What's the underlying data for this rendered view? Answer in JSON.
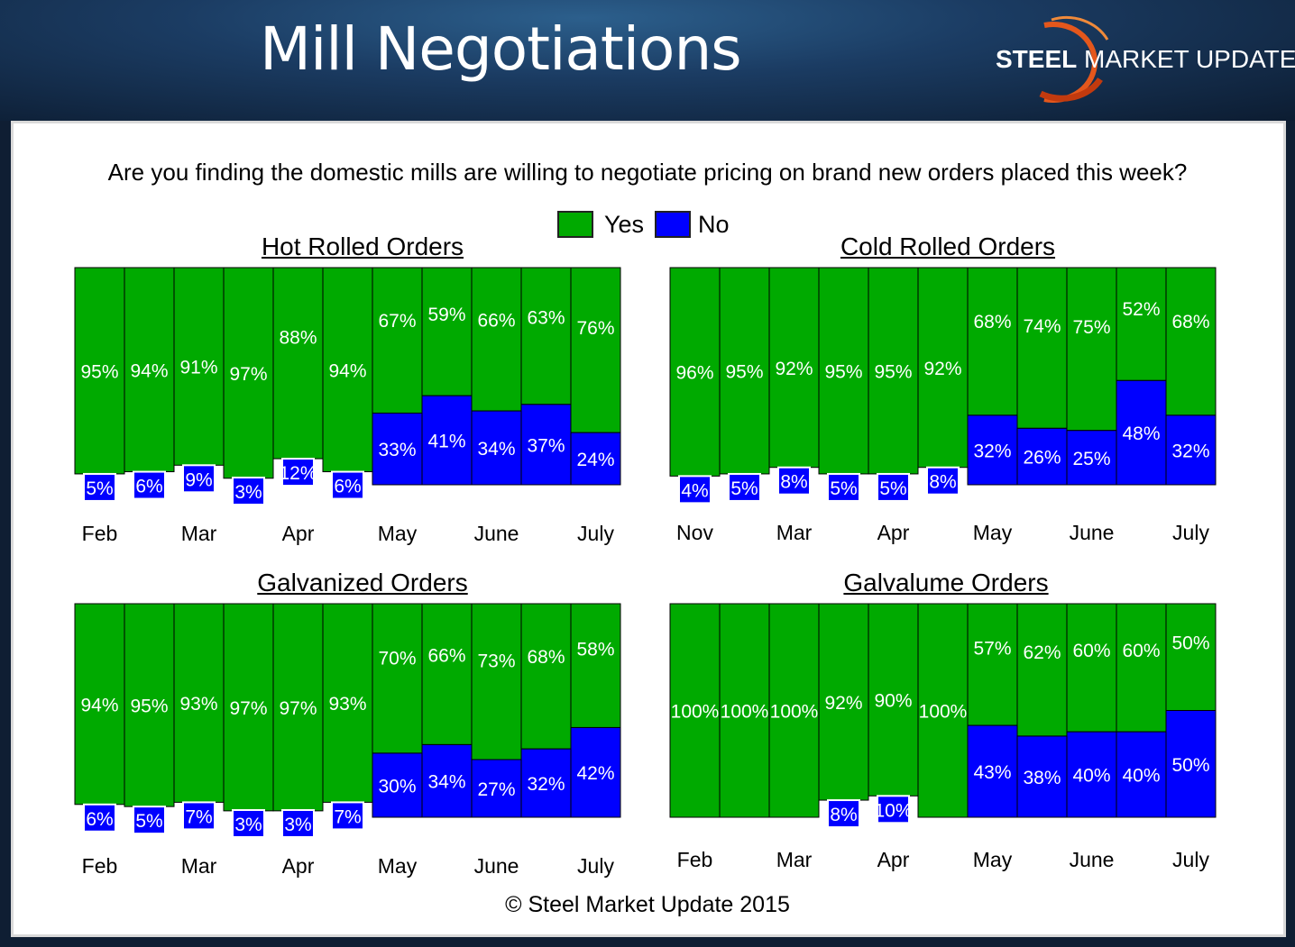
{
  "header": {
    "title": "Mill Negotiations"
  },
  "logo": {
    "bold": "STEEL",
    "rest": " MARKET UPDATE"
  },
  "question": "Are you finding the domestic mills are willing to negotiate pricing on brand new orders placed this week?",
  "legend": {
    "yes": "Yes",
    "no": "No"
  },
  "colors": {
    "yes": "#00aa00",
    "no": "#0000ff",
    "border": "#000000"
  },
  "footer": "© Steel Market Update 2015",
  "chart_data": [
    {
      "type": "bar",
      "stacked": true,
      "title": "Hot Rolled Orders",
      "x_labels": [
        "Feb",
        "Mar",
        "Apr",
        "May",
        "June",
        "July"
      ],
      "series": [
        {
          "name": "Yes",
          "labels": [
            "95%",
            "94%",
            "91%",
            "97%",
            "88%",
            "94%",
            "67%",
            "59%",
            "66%",
            "63%",
            "76%"
          ],
          "values": [
            95,
            94,
            91,
            97,
            88,
            94,
            67,
            59,
            66,
            63,
            76
          ]
        },
        {
          "name": "No",
          "labels": [
            "5%",
            "6%",
            "9%",
            "3%",
            "12%",
            "6%",
            "33%",
            "41%",
            "34%",
            "37%",
            "24%"
          ],
          "values": [
            5,
            6,
            9,
            3,
            12,
            6,
            33,
            41,
            34,
            37,
            24
          ]
        }
      ]
    },
    {
      "type": "bar",
      "stacked": true,
      "title": "Cold Rolled Orders",
      "x_labels": [
        "Nov",
        "Mar",
        "Apr",
        "May",
        "June",
        "July"
      ],
      "series": [
        {
          "name": "Yes",
          "labels": [
            "96%",
            "95%",
            "92%",
            "95%",
            "95%",
            "92%",
            "68%",
            "74%",
            "75%",
            "52%",
            "68%"
          ],
          "values": [
            96,
            95,
            92,
            95,
            95,
            92,
            68,
            74,
            75,
            52,
            68
          ]
        },
        {
          "name": "No",
          "labels": [
            "4%",
            "5%",
            "8%",
            "5%",
            "5%",
            "8%",
            "32%",
            "26%",
            "25%",
            "48%",
            "32%"
          ],
          "values": [
            4,
            5,
            8,
            5,
            5,
            8,
            32,
            26,
            25,
            48,
            32
          ]
        }
      ]
    },
    {
      "type": "bar",
      "stacked": true,
      "title": "Galvanized Orders",
      "x_labels": [
        "Feb",
        "Mar",
        "Apr",
        "May",
        "June",
        "July"
      ],
      "series": [
        {
          "name": "Yes",
          "labels": [
            "94%",
            "95%",
            "93%",
            "97%",
            "97%",
            "93%",
            "70%",
            "66%",
            "73%",
            "68%",
            "58%"
          ],
          "values": [
            94,
            95,
            93,
            97,
            97,
            93,
            70,
            66,
            73,
            68,
            58
          ]
        },
        {
          "name": "No",
          "labels": [
            "6%",
            "5%",
            "7%",
            "3%",
            "3%",
            "7%",
            "30%",
            "34%",
            "27%",
            "32%",
            "42%"
          ],
          "values": [
            6,
            5,
            7,
            3,
            3,
            7,
            30,
            34,
            27,
            32,
            42
          ]
        }
      ]
    },
    {
      "type": "bar",
      "stacked": true,
      "title": "Galvalume Orders",
      "x_labels": [
        "Feb",
        "Mar",
        "Apr",
        "May",
        "June",
        "July"
      ],
      "series": [
        {
          "name": "Yes",
          "labels": [
            "100%",
            "100%",
            "100%",
            "92%",
            "90%",
            "100%",
            "57%",
            "62%",
            "60%",
            "60%",
            "50%"
          ],
          "values": [
            100,
            100,
            100,
            92,
            90,
            100,
            57,
            62,
            60,
            60,
            50
          ]
        },
        {
          "name": "No",
          "labels": [
            "",
            "",
            "",
            "8%",
            "10%",
            "",
            "43%",
            "38%",
            "40%",
            "40%",
            "50%"
          ],
          "values": [
            0,
            0,
            0,
            8,
            10,
            0,
            43,
            38,
            40,
            40,
            50
          ]
        }
      ]
    }
  ]
}
